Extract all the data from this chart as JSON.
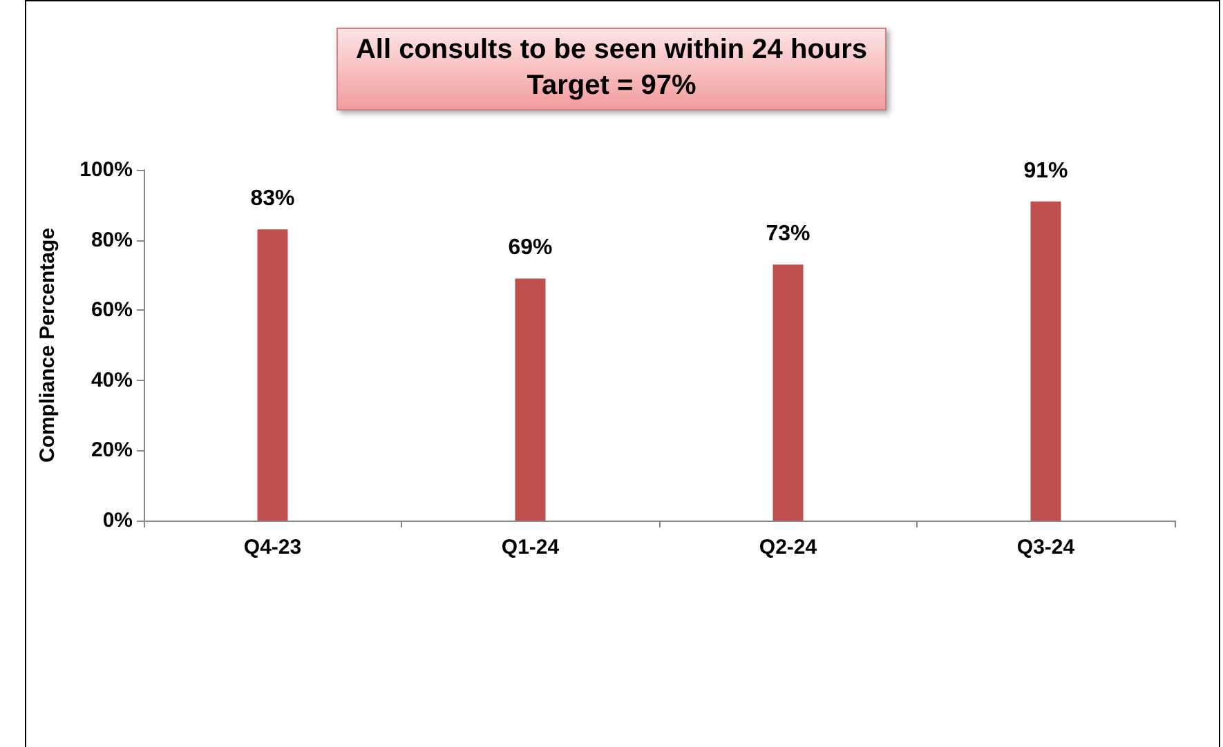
{
  "chart_data": {
    "type": "bar",
    "title": "All consults to be seen within 24 hours",
    "subtitle": "Target = 97%",
    "ylabel": "Compliance Percentage",
    "categories": [
      "Q4-23",
      "Q1-24",
      "Q2-24",
      "Q3-24"
    ],
    "values": [
      83,
      69,
      73,
      91
    ],
    "value_labels": [
      "83%",
      "69%",
      "73%",
      "91%"
    ],
    "color": "#c0504d",
    "ylim": [
      0,
      100
    ],
    "yticks": [
      {
        "value": 0,
        "label": "0%"
      },
      {
        "value": 20,
        "label": "20%"
      },
      {
        "value": 40,
        "label": "40%"
      },
      {
        "value": 60,
        "label": "60%"
      },
      {
        "value": 80,
        "label": "80%"
      },
      {
        "value": 100,
        "label": "100%"
      }
    ],
    "grid": false
  }
}
